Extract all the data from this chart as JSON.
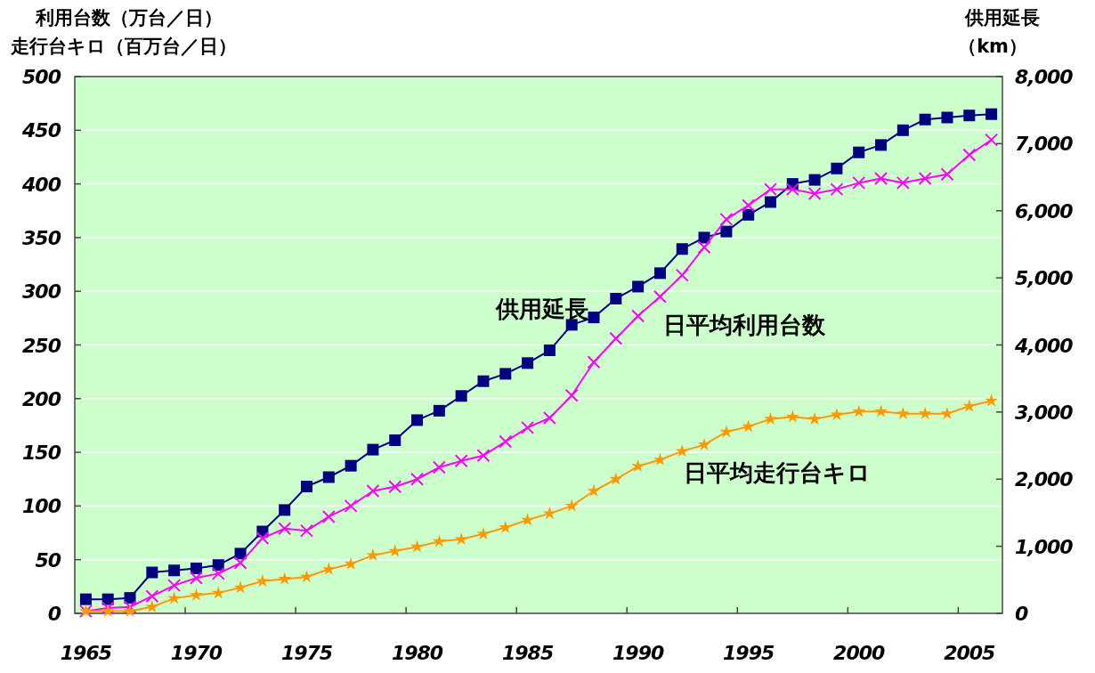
{
  "chart_data": {
    "type": "line",
    "ylabel": "利用台数（万台／日）走行台キロ（百万台／日）",
    "y2label": "供用延長（km）",
    "categories": [
      "1965",
      null,
      null,
      null,
      null,
      "1970",
      null,
      null,
      null,
      null,
      "1975",
      null,
      null,
      null,
      null,
      "1980",
      null,
      null,
      null,
      null,
      "1985",
      null,
      null,
      null,
      null,
      "1990",
      null,
      null,
      null,
      null,
      "1995",
      null,
      null,
      null,
      null,
      "2000",
      null,
      null,
      null,
      null,
      "2005",
      null
    ],
    "series": [
      {
        "name": "供用延長",
        "color": "#000080",
        "marker": "square",
        "axis": "y2",
        "values": [
          210,
          210,
          230,
          610,
          640,
          670,
          720,
          890,
          1220,
          1540,
          1890,
          2030,
          2200,
          2440,
          2580,
          2880,
          3020,
          3240,
          3460,
          3570,
          3730,
          3920,
          4300,
          4410,
          4690,
          4870,
          5070,
          5430,
          5600,
          5690,
          5940,
          6130,
          6400,
          6460,
          6630,
          6870,
          6980,
          7200,
          7360,
          7390,
          7420,
          7440
        ]
      },
      {
        "name": "日平均利用台数",
        "color": "#ff00ff",
        "marker": "cross",
        "values": [
          2,
          5,
          6,
          16,
          26,
          33,
          37,
          47,
          70,
          79,
          77,
          90,
          100,
          114,
          118,
          125,
          136,
          142,
          147,
          160,
          173,
          182,
          203,
          234,
          256,
          277,
          295,
          315,
          341,
          367,
          380,
          395,
          395,
          391,
          395,
          401,
          405,
          401,
          405,
          409,
          427,
          441
        ]
      },
      {
        "name": "日平均走行台キロ",
        "color": "#ff9900",
        "marker": "star",
        "values": [
          2,
          2,
          2,
          6,
          14,
          17,
          19,
          24,
          30,
          32,
          34,
          41,
          46,
          54,
          58,
          62,
          67,
          69,
          74,
          80,
          87,
          93,
          100,
          114,
          125,
          137,
          143,
          151,
          157,
          169,
          174,
          181,
          183,
          181,
          185,
          188,
          188,
          186,
          186,
          186,
          193,
          198
        ]
      }
    ],
    "ylim": [
      0,
      500
    ],
    "yticks": [
      0,
      50,
      100,
      150,
      200,
      250,
      300,
      350,
      400,
      450,
      500
    ],
    "y2lim": [
      0,
      8000
    ],
    "y2ticks": [
      {
        "value": 0,
        "label": "0"
      },
      {
        "value": 1000,
        "label": "1,000"
      },
      {
        "value": 2000,
        "label": "2,000"
      },
      {
        "value": 3000,
        "label": "3,000"
      },
      {
        "value": 4000,
        "label": "4,000"
      },
      {
        "value": 5000,
        "label": "5,000"
      },
      {
        "value": 6000,
        "label": "6,000"
      },
      {
        "value": 7000,
        "label": "7,000"
      },
      {
        "value": 8000,
        "label": "8,000"
      }
    ],
    "grid": "y",
    "line_style": "solid"
  }
}
